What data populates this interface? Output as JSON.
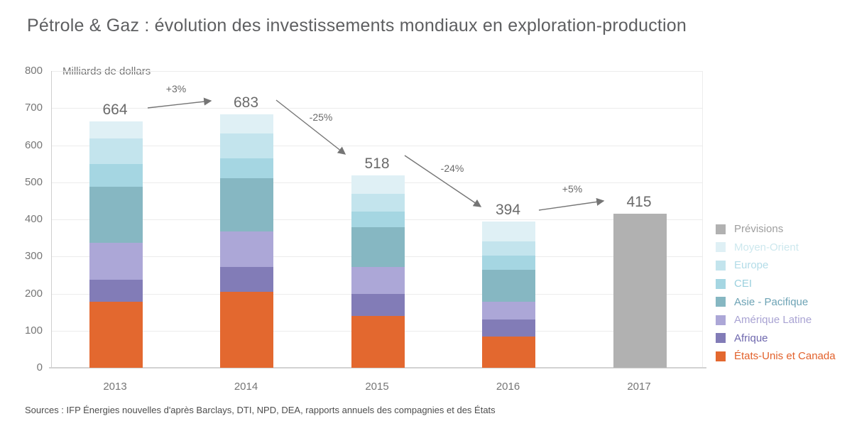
{
  "title": "Pétrole & Gaz : évolution des investissements mondiaux en exploration-production",
  "source_line": "Sources : IFP Énergies nouvelles d'après Barclays, DTI, NPD, DEA, rapports annuels des compagnies et des États",
  "chart_data": {
    "type": "bar",
    "subtype": "stacked-bar-with-forecast",
    "title": "Pétrole & Gaz : évolution des investissements mondiaux en exploration-production",
    "ylabel": "Milliards de dollars",
    "xlabel": "",
    "categories": [
      "2013",
      "2014",
      "2015",
      "2016",
      "2017"
    ],
    "totals": [
      664,
      683,
      518,
      394,
      415
    ],
    "ylim": [
      0,
      800
    ],
    "ytick_step": 100,
    "grid": "horizontal",
    "legend_position": "right",
    "series": [
      {
        "name": "États-Unis et Canada",
        "color": "#e3682f",
        "values": [
          178,
          204,
          140,
          85,
          null
        ]
      },
      {
        "name": "Afrique",
        "color": "#827cb7",
        "values": [
          60,
          68,
          60,
          46,
          null
        ]
      },
      {
        "name": "Amérique Latine",
        "color": "#aca7d7",
        "values": [
          98,
          96,
          72,
          47,
          null
        ]
      },
      {
        "name": "Asie - Pacifique",
        "color": "#86b7c2",
        "values": [
          152,
          143,
          107,
          87,
          null
        ]
      },
      {
        "name": "CEI",
        "color": "#a5d6e2",
        "values": [
          61,
          54,
          42,
          37,
          null
        ]
      },
      {
        "name": "Europe",
        "color": "#c3e4ed",
        "values": [
          70,
          66,
          47,
          38,
          null
        ]
      },
      {
        "name": "Moyen-Orient",
        "color": "#dff0f5",
        "values": [
          45,
          52,
          50,
          54,
          null
        ]
      }
    ],
    "forecast": {
      "name": "Prévisions",
      "color": "#b1b1b1",
      "category": "2017",
      "value": 415
    },
    "changes": [
      {
        "from": "2013",
        "to": "2014",
        "label": "+3%"
      },
      {
        "from": "2014",
        "to": "2015",
        "label": "-25%"
      },
      {
        "from": "2015",
        "to": "2016",
        "label": "-24%"
      },
      {
        "from": "2016",
        "to": "2017",
        "label": "+5%"
      }
    ],
    "legend": [
      {
        "label": "Prévisions",
        "color": "#b1b1b1",
        "text_color": "#9e9e9e"
      },
      {
        "label": "Moyen-Orient",
        "color": "#dff0f5",
        "text_color": "#cde8ee"
      },
      {
        "label": "Europe",
        "color": "#c3e4ed",
        "text_color": "#b3dce8"
      },
      {
        "label": "CEI",
        "color": "#a5d6e2",
        "text_color": "#9ad0de"
      },
      {
        "label": "Asie - Pacifique",
        "color": "#86b7c2",
        "text_color": "#6da3b5"
      },
      {
        "label": "Amérique Latine",
        "color": "#aca7d7",
        "text_color": "#a9a3d3"
      },
      {
        "label": "Afrique",
        "color": "#827cb7",
        "text_color": "#6f68ae"
      },
      {
        "label": "États-Unis et Canada",
        "color": "#e3682f",
        "text_color": "#e2612b"
      }
    ],
    "colors": {
      "grid": "#ececec",
      "axis": "#d2d2d2",
      "arrow": "#757575",
      "tick_text": "#767676",
      "value_text": "#6a6a6a"
    }
  }
}
